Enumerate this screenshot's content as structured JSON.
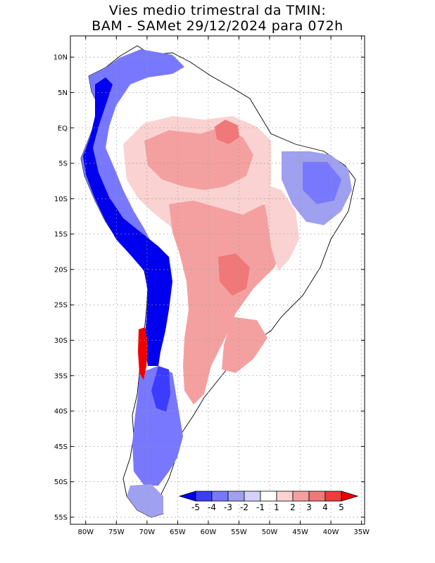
{
  "title_line1": "Vies medio trimestral da TMIN:",
  "title_line2": "BAM - SAMet 29/12/2024  para 072h",
  "lat_labels": [
    "10N",
    "5N",
    "EQ",
    "5S",
    "10S",
    "15S",
    "20S",
    "25S",
    "30S",
    "35S",
    "40S",
    "45S",
    "50S",
    "55S"
  ],
  "lon_labels": [
    "80W",
    "75W",
    "70W",
    "65W",
    "60W",
    "55W",
    "50W",
    "45W",
    "40W",
    "35W"
  ],
  "lat_values": [
    10,
    5,
    0,
    -5,
    -10,
    -15,
    -20,
    -25,
    -30,
    -35,
    -40,
    -45,
    -50,
    -55
  ],
  "lon_values": [
    -80,
    -75,
    -70,
    -65,
    -60,
    -55,
    -50,
    -45,
    -40,
    -35
  ],
  "map_extent": {
    "lon_min": -82.5,
    "lon_max": -34.5,
    "lat_min": -56,
    "lat_max": 13
  },
  "grid": true,
  "colorbar": {
    "labels": [
      "-5",
      "-4",
      "-3",
      "-2",
      "-1",
      "1",
      "2",
      "3",
      "4",
      "5"
    ],
    "colors": [
      "#0000ee",
      "#3c3cff",
      "#7878ff",
      "#a0a0f0",
      "#d2d2fa",
      "#ffffff",
      "#fad2d2",
      "#f5a0a0",
      "#f07878",
      "#f03c3c",
      "#ee0000"
    ],
    "placement": "bottom-right, inside map"
  }
}
